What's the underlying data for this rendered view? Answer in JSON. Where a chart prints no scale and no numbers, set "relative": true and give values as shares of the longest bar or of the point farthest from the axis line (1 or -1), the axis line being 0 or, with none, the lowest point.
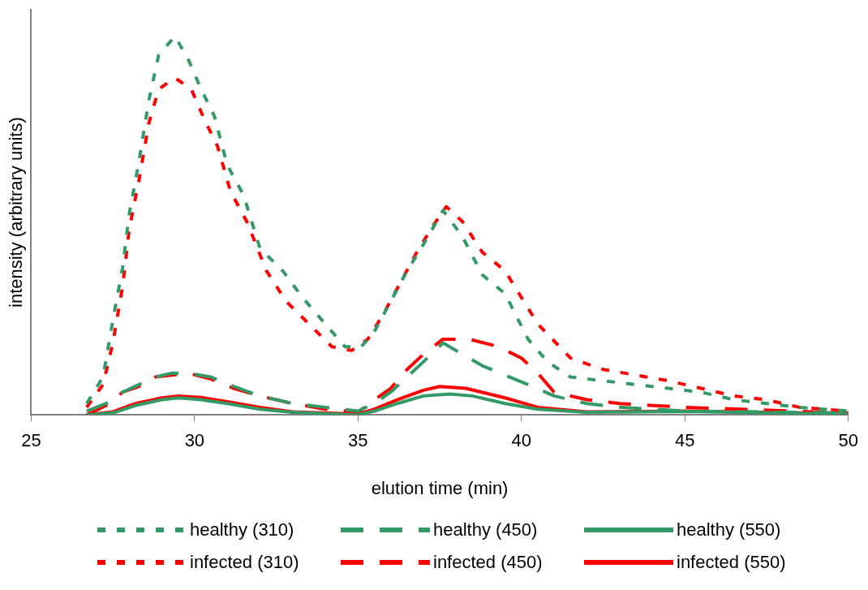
{
  "chart_data": {
    "type": "line",
    "relative": true,
    "xlabel": "elution time (min)",
    "ylabel": "intensity (arbitrary units)",
    "xlim": [
      25,
      50
    ],
    "xticks": [
      25,
      30,
      35,
      40,
      45,
      50
    ],
    "grid": false,
    "legend": "bottom",
    "marker": "none",
    "series": [
      {
        "name": "healthy (310)",
        "color": "#339966",
        "line_style": "dotted",
        "x": [
          26.7,
          27.2,
          27.5,
          27.8,
          28.0,
          28.3,
          28.6,
          28.9,
          29.4,
          29.8,
          30.2,
          30.6,
          31.0,
          31.5,
          32,
          32.7,
          33.3,
          34,
          34.6,
          35.1,
          35.5,
          36,
          36.5,
          37,
          37.6,
          38.2,
          38.8,
          39.5,
          40.2,
          40.8,
          41.5,
          42.5,
          43.5,
          44.5,
          45.5,
          46.5,
          47.5,
          48.5,
          50
        ],
        "values": [
          0.03,
          0.1,
          0.25,
          0.39,
          0.53,
          0.67,
          0.83,
          0.95,
          1,
          0.94,
          0.86,
          0.79,
          0.66,
          0.58,
          0.44,
          0.38,
          0.31,
          0.24,
          0.18,
          0.18,
          0.22,
          0.3,
          0.38,
          0.45,
          0.54,
          0.47,
          0.37,
          0.32,
          0.2,
          0.14,
          0.1,
          0.09,
          0.08,
          0.07,
          0.06,
          0.04,
          0.03,
          0.02,
          0.01
        ]
      },
      {
        "name": "healthy (450)",
        "color": "#339966",
        "line_style": "dashed",
        "x": [
          26.7,
          27.3,
          27.8,
          28.3,
          28.8,
          29.3,
          29.8,
          30.5,
          31.2,
          32,
          33,
          34,
          35,
          35.5,
          36,
          36.5,
          37,
          37.6,
          38.2,
          38.8,
          39.5,
          40.2,
          41,
          42,
          43,
          45,
          50
        ],
        "values": [
          0.01,
          0.03,
          0.06,
          0.08,
          0.1,
          0.11,
          0.11,
          0.1,
          0.075,
          0.05,
          0.03,
          0.02,
          0.01,
          0.03,
          0.06,
          0.1,
          0.14,
          0.19,
          0.16,
          0.13,
          0.105,
          0.08,
          0.05,
          0.03,
          0.02,
          0.01,
          0.005
        ]
      },
      {
        "name": "healthy (550)",
        "color": "#339966",
        "line_style": "solid",
        "x": [
          26.7,
          27.5,
          28.2,
          29,
          29.5,
          30.2,
          31,
          32,
          33,
          35,
          35.5,
          36.2,
          37,
          37.8,
          38.5,
          39.5,
          40.5,
          42,
          45,
          50
        ],
        "values": [
          0,
          0.005,
          0.025,
          0.04,
          0.045,
          0.04,
          0.03,
          0.015,
          0.007,
          0,
          0.01,
          0.03,
          0.05,
          0.055,
          0.05,
          0.03,
          0.015,
          0.007,
          0.009,
          0.002
        ]
      },
      {
        "name": "infected (310)",
        "color": "#ff0000",
        "line_style": "dotted",
        "x": [
          26.7,
          27.2,
          27.5,
          27.8,
          28.0,
          28.3,
          28.6,
          28.9,
          29.4,
          29.9,
          30.3,
          30.7,
          31.1,
          31.6,
          32.2,
          32.8,
          33.5,
          34.2,
          34.8,
          35.3,
          35.8,
          36.3,
          36.8,
          37.3,
          37.7,
          38.2,
          38.8,
          39.5,
          40.5,
          41.5,
          42.5,
          43.5,
          44.5,
          45.5,
          46.5,
          47.5,
          48.5,
          50
        ],
        "values": [
          0.02,
          0.08,
          0.19,
          0.34,
          0.49,
          0.62,
          0.77,
          0.86,
          0.89,
          0.86,
          0.78,
          0.71,
          0.59,
          0.51,
          0.38,
          0.3,
          0.24,
          0.18,
          0.17,
          0.2,
          0.27,
          0.35,
          0.43,
          0.5,
          0.55,
          0.51,
          0.43,
          0.38,
          0.24,
          0.15,
          0.12,
          0.105,
          0.09,
          0.07,
          0.05,
          0.04,
          0.02,
          0.01
        ]
      },
      {
        "name": "infected (450)",
        "color": "#ff0000",
        "line_style": "dashed",
        "x": [
          26.7,
          27.3,
          27.8,
          28.3,
          28.8,
          29.3,
          29.8,
          30.5,
          31.2,
          32,
          33,
          34,
          35,
          35.5,
          36,
          36.5,
          37,
          37.6,
          38.4,
          39.3,
          40,
          40.5,
          41,
          42,
          43,
          45,
          50
        ],
        "values": [
          0,
          0.025,
          0.06,
          0.075,
          0.1,
          0.105,
          0.11,
          0.095,
          0.07,
          0.05,
          0.03,
          0.015,
          0.007,
          0.04,
          0.07,
          0.12,
          0.16,
          0.2,
          0.2,
          0.18,
          0.15,
          0.11,
          0.06,
          0.04,
          0.03,
          0.02,
          0.005
        ]
      },
      {
        "name": "infected (550)",
        "color": "#ff0000",
        "line_style": "solid",
        "x": [
          26.7,
          27.5,
          28.2,
          29,
          29.5,
          30.2,
          31,
          32,
          33,
          35,
          35.5,
          36.2,
          37,
          37.5,
          38.3,
          39.5,
          40.5,
          42,
          45,
          50
        ],
        "values": [
          0,
          0.008,
          0.03,
          0.045,
          0.05,
          0.046,
          0.035,
          0.02,
          0.008,
          0.002,
          0.015,
          0.04,
          0.065,
          0.075,
          0.07,
          0.045,
          0.02,
          0.008,
          0.01,
          0.003
        ]
      }
    ]
  }
}
